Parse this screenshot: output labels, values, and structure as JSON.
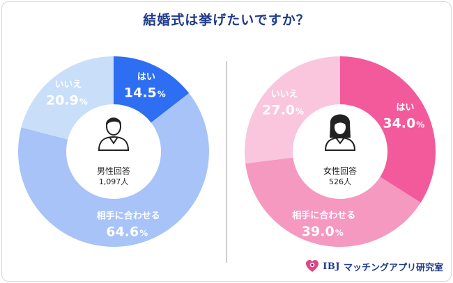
{
  "title": "結婚式は挙げたいですか？",
  "footer": {
    "brand": "IBJ",
    "org": "マッチングアプリ研究室"
  },
  "chart_data": [
    {
      "type": "pie",
      "variant": "donut",
      "center_label": "男性回答",
      "center_count": "1,097人",
      "slices": [
        {
          "label": "はい",
          "value": 14.5,
          "display": "14.5",
          "unit": "%",
          "color": "#2e6ef2"
        },
        {
          "label": "相手に合わせる",
          "value": 64.6,
          "display": "64.6",
          "unit": "%",
          "color": "#a7c3f7"
        },
        {
          "label": "いいえ",
          "value": 20.9,
          "display": "20.9",
          "unit": "%",
          "color": "#c9def9"
        }
      ]
    },
    {
      "type": "pie",
      "variant": "donut",
      "center_label": "女性回答",
      "center_count": "526人",
      "slices": [
        {
          "label": "はい",
          "value": 34.0,
          "display": "34.0",
          "unit": "%",
          "color": "#f25a9b"
        },
        {
          "label": "相手に合わせる",
          "value": 39.0,
          "display": "39.0",
          "unit": "%",
          "color": "#f599c1"
        },
        {
          "label": "いいえ",
          "value": 27.0,
          "display": "27.0",
          "unit": "%",
          "color": "#f9c6dd"
        }
      ]
    }
  ]
}
